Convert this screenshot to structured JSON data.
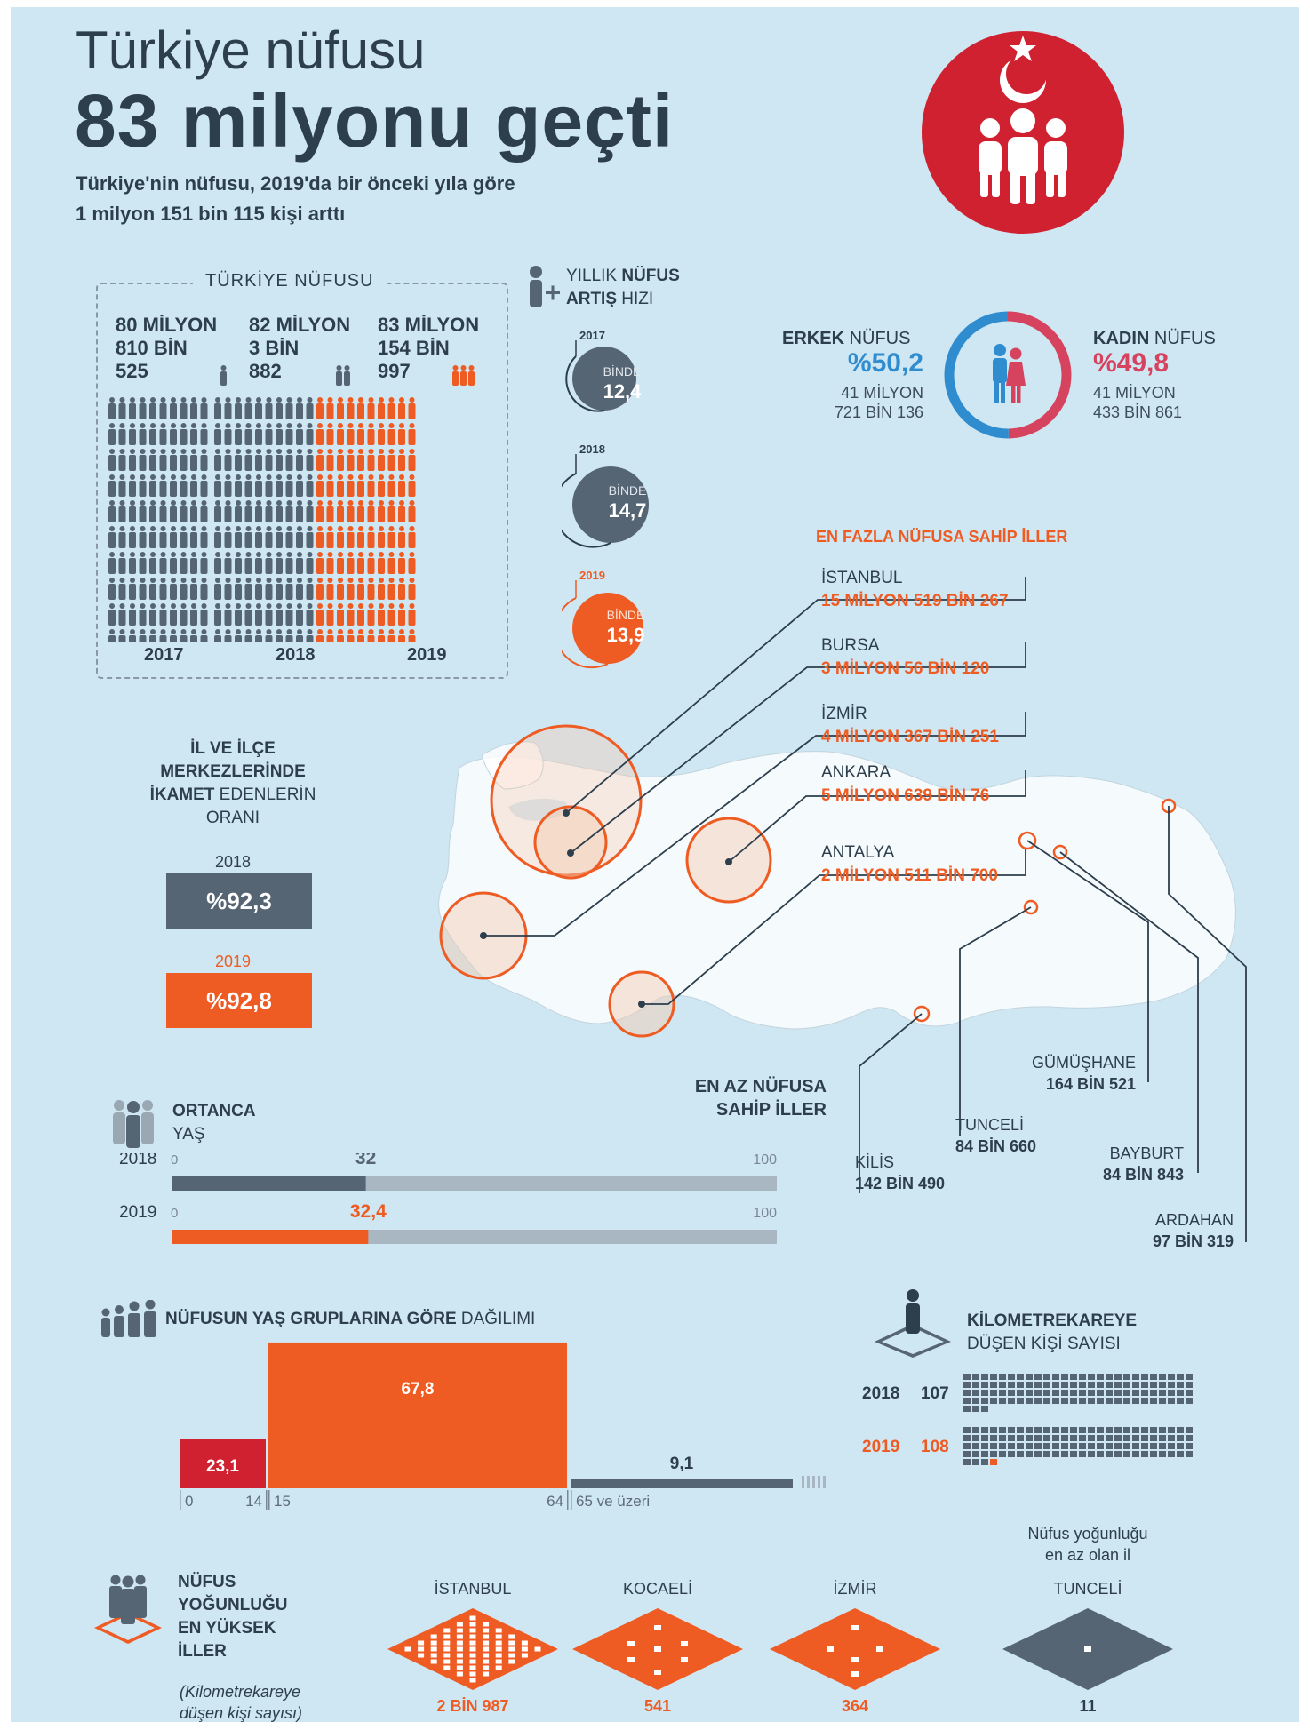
{
  "header": {
    "title_line1": "Türkiye nüfusu",
    "title_line2": "83 milyonu geçti",
    "subtitle_line1": "Türkiye'nin nüfusu, 2019'da bir önceki yıla göre",
    "subtitle_line2": "1 milyon 151 bin 115 kişi arttı"
  },
  "population": {
    "box_title": "TÜRKİYE NÜFUSU",
    "columns": [
      {
        "line1": "80 MİLYON",
        "line2": "810 BİN",
        "line3": "525",
        "year": "2017"
      },
      {
        "line1": "82 MİLYON",
        "line2": "3 BİN",
        "line3": "882",
        "year": "2018"
      },
      {
        "line1": "83 MİLYON",
        "line2": "154 BİN",
        "line3": "997",
        "year": "2019"
      }
    ]
  },
  "growth": {
    "label_a": "YILLIK ",
    "label_b": "NÜFUS",
    "label_c": "ARTIŞ",
    "label_d": " HIZI",
    "items": [
      {
        "year": "2017",
        "unit": "BİNDE",
        "value": "12,4"
      },
      {
        "year": "2018",
        "unit": "BİNDE",
        "value": "14,7"
      },
      {
        "year": "2019",
        "unit": "BİNDE",
        "value": "13,9"
      }
    ]
  },
  "gender": {
    "male_label_b": "ERKEK",
    "male_label_n": " NÜFUS",
    "male_pct": "%50,2",
    "male_line1": "41 MİLYON",
    "male_line2": "721 BİN 136",
    "female_label_b": "KADIN",
    "female_label_n": " NÜFUS",
    "female_pct": "%49,8",
    "female_line1": "41 MİLYON",
    "female_line2": "433 BİN 861",
    "male_share": 50.2,
    "female_share": 49.8
  },
  "most_populous": {
    "title": "EN FAZLA NÜFUSA SAHİP İLLER",
    "items": [
      {
        "name": "İSTANBUL",
        "value": "15 MİLYON 519 BİN 267"
      },
      {
        "name": "BURSA",
        "value": "3 MİLYON 56 BİN 120"
      },
      {
        "name": "İZMİR",
        "value": "4 MİLYON 367 BİN 251"
      },
      {
        "name": "ANKARA",
        "value": "5 MİLYON 639 BİN 76"
      },
      {
        "name": "ANTALYA",
        "value": "2 MİLYON 511 BİN 700"
      }
    ]
  },
  "least_populous": {
    "title_line1": "EN AZ NÜFUSA",
    "title_line2": "SAHİP İLLER",
    "items": [
      {
        "name": "KİLİS",
        "value": "142 BİN 490"
      },
      {
        "name": "TUNCELİ",
        "value": "84 BİN 660"
      },
      {
        "name": "GÜMÜŞHANE",
        "value": "164 BİN 521"
      },
      {
        "name": "BAYBURT",
        "value": "84 BİN 843"
      },
      {
        "name": "ARDAHAN",
        "value": "97 BİN 319"
      }
    ]
  },
  "urban": {
    "line1": "İL VE İLÇE",
    "line2": "MERKEZLERİNDE",
    "line3_b": "İKAMET",
    "line3_n": " EDENLERİN",
    "line4": "ORANI",
    "items": [
      {
        "year": "2018",
        "value": "%92,3"
      },
      {
        "year": "2019",
        "value": "%92,8"
      }
    ]
  },
  "median_age": {
    "title_b": "ORTANCA",
    "title_n": "YAŞ",
    "min_label": "0",
    "max_label": "100",
    "rows": [
      {
        "year": "2018",
        "label": "32"
      },
      {
        "year": "2019",
        "label": "32,4"
      }
    ]
  },
  "age_groups": {
    "title_b": "NÜFUSUN YAŞ GRUPLARINA GÖRE",
    "title_n": " DAĞILIMI",
    "bars": [
      {
        "label": "23,1",
        "start": "0",
        "end": "14"
      },
      {
        "label": "67,8",
        "start": "15",
        "end": "64"
      },
      {
        "label": "9,1",
        "start": "65 ve üzeri",
        "end": ""
      }
    ]
  },
  "density": {
    "title_b": "KİLOMETREKAREYE",
    "title_n": "DÜŞEN KİŞİ SAYISI",
    "rows": [
      {
        "year": "2018",
        "value": "107"
      },
      {
        "year": "2019",
        "value": "108"
      }
    ]
  },
  "density_cities": {
    "title_l1": "NÜFUS",
    "title_l2": "YOĞUNLUĞU",
    "title_l3": "EN YÜKSEK",
    "title_l4": "İLLER",
    "note_l1": "(Kilometrekareye",
    "note_l2": "düşen kişi sayısı)",
    "least_note_l1": "Nüfus yoğunluğu",
    "least_note_l2": "en az olan il",
    "items": [
      {
        "name": "İSTANBUL",
        "value": "2 BİN 987"
      },
      {
        "name": "KOCAELİ",
        "value": "541"
      },
      {
        "name": "İZMİR",
        "value": "364"
      },
      {
        "name": "TUNCELİ",
        "value": "11"
      }
    ]
  },
  "colors": {
    "orange": "#ee5b23",
    "dark": "#2d3e4c",
    "grey": "#566573",
    "blue": "#2e8ccf",
    "pink": "#d6435e",
    "red": "#cf2130",
    "background": "#cfe7f2"
  },
  "chart_data": [
    {
      "type": "bar",
      "title": "TÜRKİYE NÜFUSU",
      "categories": [
        "2017",
        "2018",
        "2019"
      ],
      "values": [
        80810525,
        82003882,
        83154997
      ]
    },
    {
      "type": "bar",
      "title": "YILLIK NÜFUS ARTIŞ HIZI",
      "categories": [
        "2017",
        "2018",
        "2019"
      ],
      "values": [
        12.4,
        14.7,
        13.9
      ]
    },
    {
      "type": "pie",
      "title": "",
      "categories": [
        "ERKEK NÜFUS",
        "KADIN NÜFUS"
      ],
      "values": [
        50.2,
        49.8
      ]
    },
    {
      "type": "bar",
      "title": "İL VE İLÇE MERKEZLERİNDE İKAMET EDENLERİN ORANI",
      "categories": [
        "2018",
        "2019"
      ],
      "values": [
        92.3,
        92.8
      ]
    },
    {
      "type": "bar",
      "title": "ORTANCA YAŞ",
      "categories": [
        "2018",
        "2019"
      ],
      "values": [
        32,
        32.4
      ],
      "ylim": [
        0,
        100
      ]
    },
    {
      "type": "bar",
      "title": "NÜFUSUN YAŞ GRUPLARINA GÖRE DAĞILIMI",
      "categories": [
        "0-14",
        "15-64",
        "65 ve üzeri"
      ],
      "values": [
        23.1,
        67.8,
        9.1
      ]
    },
    {
      "type": "bar",
      "title": "KİLOMETREKAREYE DÜŞEN KİŞİ SAYISI",
      "categories": [
        "2018",
        "2019"
      ],
      "values": [
        107,
        108
      ]
    },
    {
      "type": "bar",
      "title": "EN FAZLA NÜFUSA SAHİP İLLER",
      "categories": [
        "İSTANBUL",
        "ANKARA",
        "İZMİR",
        "BURSA",
        "ANTALYA"
      ],
      "values": [
        15519267,
        5639076,
        4367251,
        3056120,
        2511700
      ]
    },
    {
      "type": "bar",
      "title": "EN AZ NÜFUSA SAHİP İLLER",
      "categories": [
        "GÜMÜŞHANE",
        "KİLİS",
        "ARDAHAN",
        "BAYBURT",
        "TUNCELİ"
      ],
      "values": [
        164521,
        142490,
        97319,
        84843,
        84660
      ]
    },
    {
      "type": "bar",
      "title": "NÜFUS YOĞUNLUĞU EN YÜKSEK İLLER",
      "categories": [
        "İSTANBUL",
        "KOCAELİ",
        "İZMİR",
        "TUNCELİ"
      ],
      "values": [
        2987,
        541,
        364,
        11
      ]
    }
  ]
}
